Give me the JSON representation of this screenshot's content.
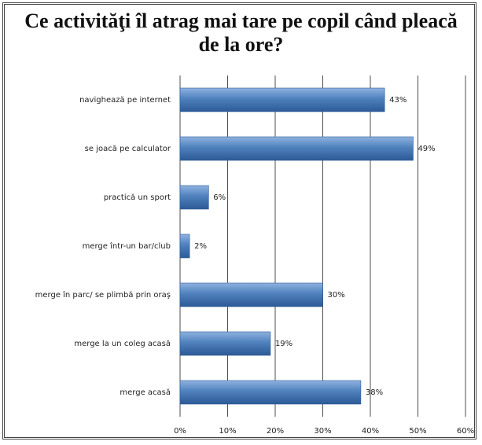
{
  "chart_data": {
    "type": "bar",
    "orientation": "horizontal",
    "title": "Ce activităţi îl atrag mai tare pe copil când pleacă de la ore?",
    "categories": [
      "navighează pe internet",
      "se joacă pe calculator",
      "practică un sport",
      "merge într-un bar/club",
      "merge în parc/ se plimbă prin oraş",
      "merge la un coleg acasă",
      "merge acasă"
    ],
    "values": [
      43,
      49,
      6,
      2,
      30,
      19,
      38
    ],
    "value_labels": [
      "43%",
      "49%",
      "6%",
      "2%",
      "30%",
      "19%",
      "38%"
    ],
    "color": "#4f81bd",
    "xlim": [
      0,
      60
    ],
    "xticks": [
      {
        "value": 0,
        "label": "0%"
      },
      {
        "value": 10,
        "label": "10%"
      },
      {
        "value": 20,
        "label": "20%"
      },
      {
        "value": 30,
        "label": "30%"
      },
      {
        "value": 40,
        "label": "40%"
      },
      {
        "value": 50,
        "label": "50%"
      },
      {
        "value": 60,
        "label": "60%"
      }
    ],
    "grid": true
  }
}
